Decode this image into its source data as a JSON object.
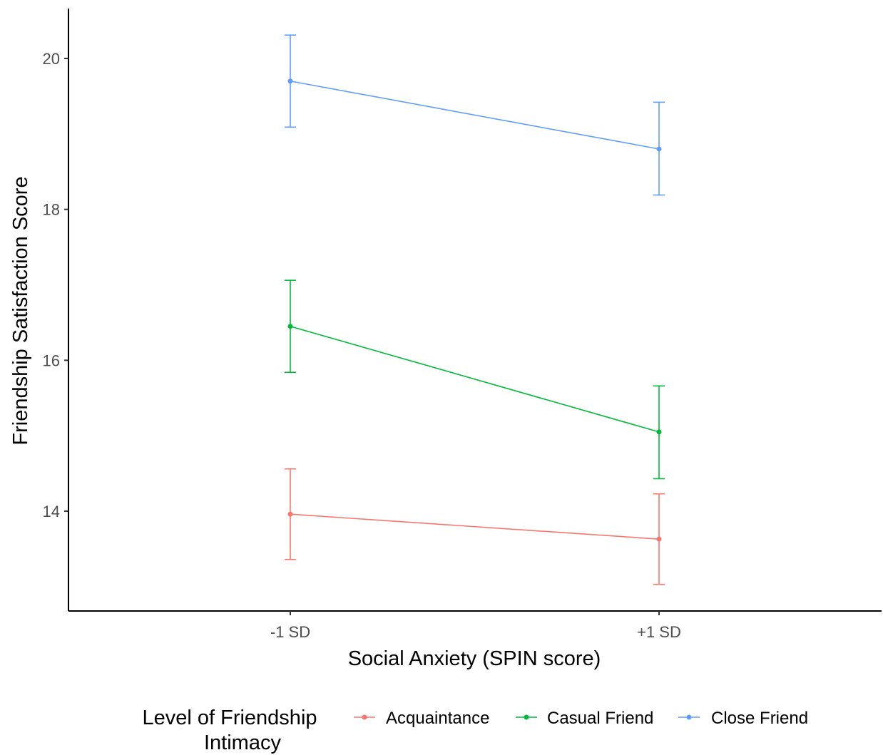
{
  "chart_data": {
    "type": "line",
    "title": "",
    "xlabel": "Social Anxiety (SPIN score)",
    "ylabel": "Friendship Satisfaction Score",
    "categories": [
      "-1 SD",
      "+1 SD"
    ],
    "ylim": [
      12.7,
      20.7
    ],
    "yticks": [
      "14",
      "16",
      "18",
      "20"
    ],
    "grid": false,
    "error_bars": true,
    "legend": {
      "title_line1": "Level of Friendship",
      "title_line2": "Intimacy",
      "position": "bottom"
    },
    "series": [
      {
        "name": "Acquaintance",
        "color": "#F8766D",
        "values": [
          13.96,
          13.63
        ],
        "lower": [
          13.36,
          13.03
        ],
        "upper": [
          14.56,
          14.23
        ]
      },
      {
        "name": "Casual Friend",
        "color": "#00BA38",
        "values": [
          16.45,
          15.05
        ],
        "lower": [
          15.84,
          14.43
        ],
        "upper": [
          17.06,
          15.66
        ]
      },
      {
        "name": "Close Friend",
        "color": "#619CFF",
        "values": [
          19.7,
          18.8
        ],
        "lower": [
          19.09,
          18.19
        ],
        "upper": [
          20.31,
          19.42
        ]
      }
    ]
  }
}
